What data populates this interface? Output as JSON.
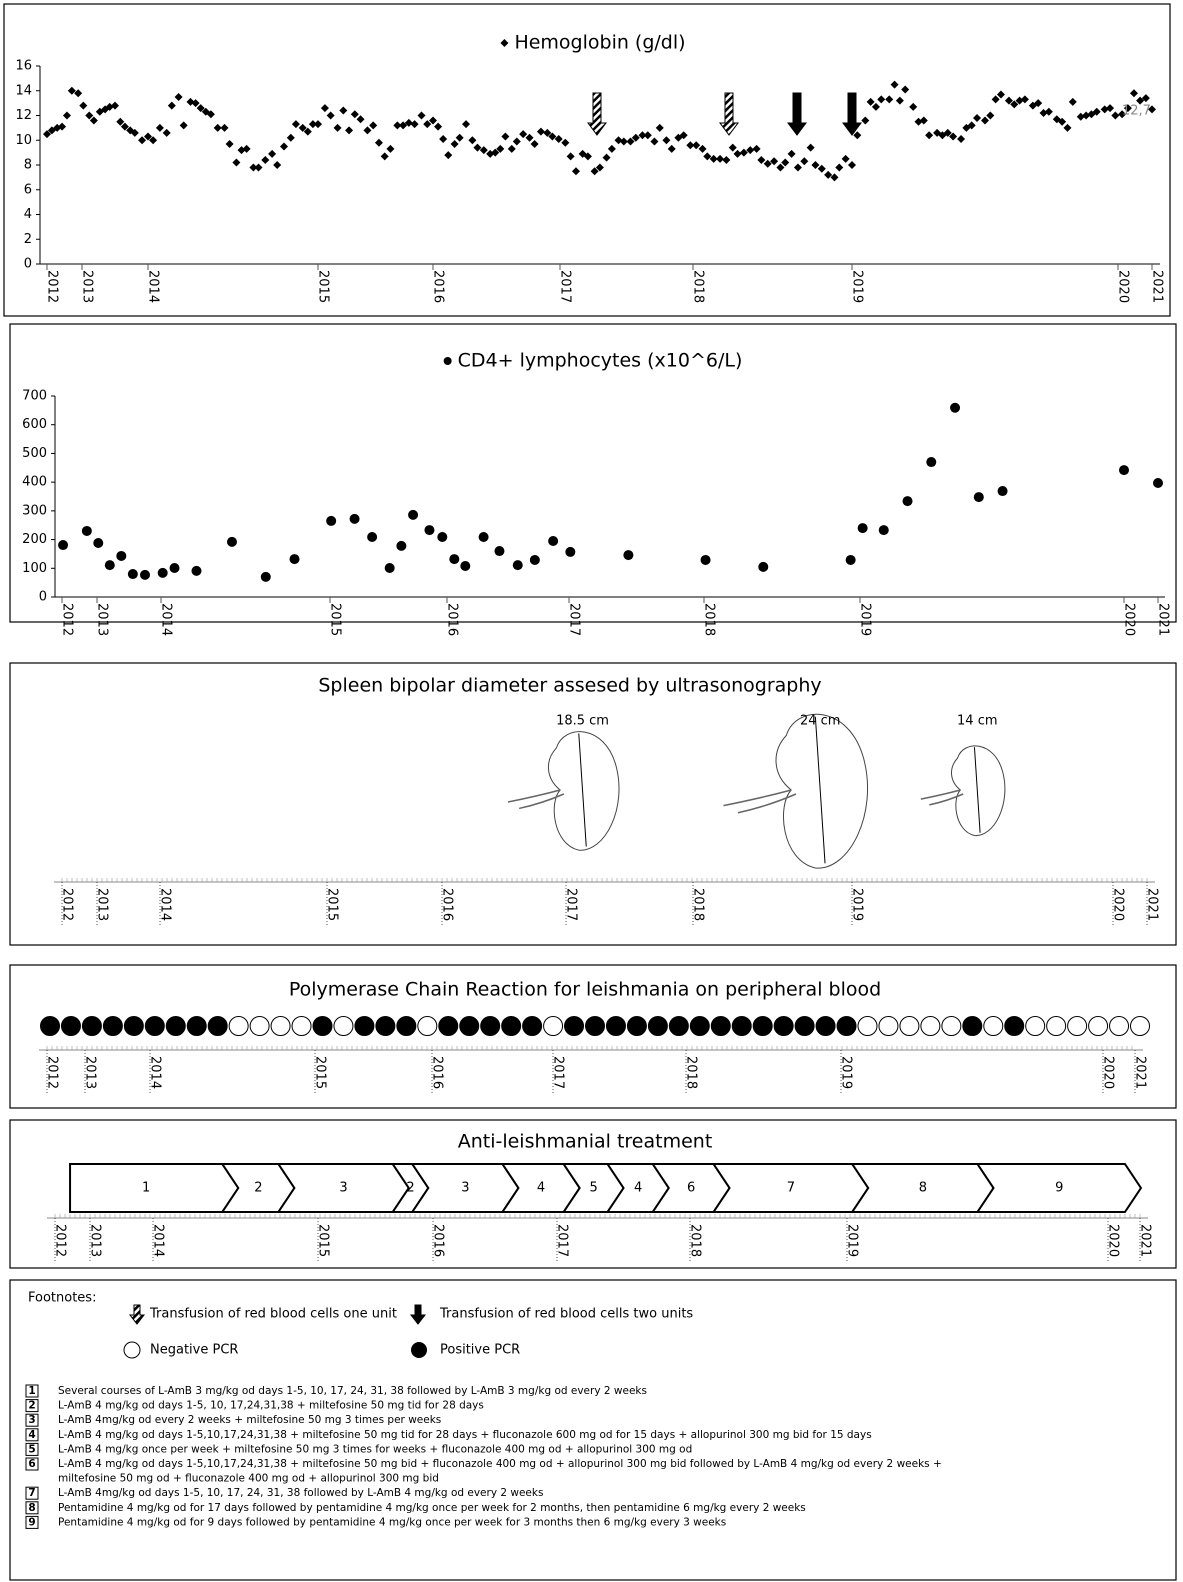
{
  "chart_data": [
    {
      "type": "scatter",
      "title": "Hemoglobin (g/dl)",
      "marker": "diamond",
      "color": "#000000",
      "annotation": "12,7",
      "x": [
        2012.0,
        2012.14,
        2012.29,
        2012.43,
        2012.57,
        2012.71,
        2012.89,
        2013.02,
        2013.11,
        2013.18,
        2013.27,
        2013.35,
        2013.42,
        2013.5,
        2013.58,
        2013.65,
        2013.73,
        2013.8,
        2013.91,
        2014.0,
        2014.03,
        2014.07,
        2014.11,
        2014.14,
        2014.18,
        2014.21,
        2014.25,
        2014.28,
        2014.31,
        2014.34,
        2014.37,
        2014.41,
        2014.45,
        2014.48,
        2014.52,
        2014.55,
        2014.58,
        2014.62,
        2014.65,
        2014.69,
        2014.73,
        2014.76,
        2014.8,
        2014.84,
        2014.87,
        2014.91,
        2014.94,
        2014.97,
        2015.0,
        2015.06,
        2015.11,
        2015.17,
        2015.22,
        2015.27,
        2015.32,
        2015.37,
        2015.43,
        2015.48,
        2015.53,
        2015.58,
        2015.63,
        2015.69,
        2015.74,
        2015.79,
        2015.84,
        2015.9,
        2015.95,
        2016.0,
        2016.04,
        2016.08,
        2016.12,
        2016.17,
        2016.21,
        2016.26,
        2016.31,
        2016.35,
        2016.4,
        2016.45,
        2016.49,
        2016.53,
        2016.57,
        2016.62,
        2016.66,
        2016.71,
        2016.76,
        2016.8,
        2016.85,
        2016.9,
        2016.94,
        2016.99,
        2017.04,
        2017.08,
        2017.12,
        2017.17,
        2017.21,
        2017.26,
        2017.3,
        2017.35,
        2017.39,
        2017.44,
        2017.48,
        2017.53,
        2017.57,
        2017.62,
        2017.66,
        2017.71,
        2017.75,
        2017.8,
        2017.84,
        2017.89,
        2017.93,
        2017.98,
        2018.02,
        2018.06,
        2018.09,
        2018.13,
        2018.17,
        2018.21,
        2018.25,
        2018.28,
        2018.32,
        2018.36,
        2018.4,
        2018.43,
        2018.47,
        2018.51,
        2018.55,
        2018.58,
        2018.62,
        2018.66,
        2018.7,
        2018.74,
        2018.77,
        2018.81,
        2018.85,
        2018.89,
        2018.92,
        2018.96,
        2019.0,
        2019.02,
        2019.05,
        2019.07,
        2019.09,
        2019.11,
        2019.14,
        2019.16,
        2019.18,
        2019.2,
        2019.23,
        2019.25,
        2019.27,
        2019.29,
        2019.32,
        2019.34,
        2019.36,
        2019.38,
        2019.41,
        2019.43,
        2019.45,
        2019.47,
        2019.5,
        2019.52,
        2019.54,
        2019.56,
        2019.59,
        2019.61,
        2019.63,
        2019.65,
        2019.68,
        2019.7,
        2019.72,
        2019.74,
        2019.77,
        2019.79,
        2019.81,
        2019.83,
        2019.86,
        2019.88,
        2019.9,
        2019.92,
        2019.95,
        2019.97,
        2019.99,
        2020.12,
        2020.29,
        2020.47,
        2020.65,
        2020.82,
        2021.0
      ],
      "values": [
        10.5,
        10.8,
        11.0,
        11.1,
        12.0,
        14.0,
        13.8,
        12.8,
        12.0,
        11.6,
        12.3,
        12.5,
        12.7,
        12.8,
        11.5,
        11.1,
        10.8,
        10.6,
        10.0,
        10.3,
        10.0,
        11.0,
        10.6,
        12.8,
        13.5,
        11.2,
        13.1,
        13.0,
        12.6,
        12.3,
        12.1,
        11.0,
        11.0,
        9.7,
        8.2,
        9.2,
        9.3,
        7.8,
        7.8,
        8.4,
        8.9,
        8.0,
        9.5,
        10.2,
        11.3,
        11.0,
        10.7,
        11.3,
        11.3,
        12.6,
        12.0,
        11.0,
        12.4,
        10.8,
        12.1,
        11.7,
        10.8,
        11.2,
        9.8,
        8.7,
        9.3,
        11.2,
        11.2,
        11.4,
        11.3,
        12.0,
        11.3,
        11.6,
        11.1,
        10.1,
        8.8,
        9.7,
        10.2,
        11.3,
        10.0,
        9.4,
        9.2,
        8.9,
        9.0,
        9.3,
        10.3,
        9.3,
        9.9,
        10.5,
        10.2,
        9.7,
        10.7,
        10.6,
        10.3,
        10.1,
        9.8,
        8.7,
        7.5,
        8.9,
        8.7,
        7.5,
        7.8,
        8.6,
        9.3,
        10.0,
        9.9,
        9.9,
        10.2,
        10.4,
        10.4,
        9.9,
        11.0,
        10.0,
        9.3,
        10.2,
        10.4,
        9.6,
        9.6,
        9.3,
        8.7,
        8.5,
        8.5,
        8.4,
        9.4,
        8.9,
        9.0,
        9.2,
        9.3,
        8.4,
        8.1,
        8.3,
        7.8,
        8.2,
        8.9,
        7.8,
        8.3,
        9.4,
        8.0,
        7.7,
        7.2,
        7.0,
        7.8,
        8.5,
        8.0,
        10.4,
        11.6,
        13.1,
        12.7,
        13.3,
        13.3,
        14.5,
        13.2,
        14.1,
        12.7,
        11.5,
        11.6,
        10.4,
        10.6,
        10.4,
        10.6,
        10.3,
        10.1,
        11.0,
        11.2,
        11.8,
        11.6,
        12.0,
        13.3,
        13.7,
        13.2,
        12.9,
        13.2,
        13.3,
        12.8,
        13.0,
        12.2,
        12.3,
        11.7,
        11.5,
        11.0,
        13.1,
        11.9,
        12.0,
        12.1,
        12.3,
        12.5,
        12.6,
        12.0,
        12.1,
        12.6,
        13.8,
        13.2,
        13.4,
        12.5
      ],
      "xlim": [
        2012,
        2021
      ],
      "xticks": [
        2012,
        2013,
        2014,
        2015,
        2016,
        2017,
        2018,
        2019,
        2020,
        2021
      ],
      "ylim": [
        0,
        16
      ],
      "yticks": [
        0,
        2,
        4,
        6,
        8,
        10,
        12,
        14,
        16
      ]
    },
    {
      "type": "scatter",
      "title": "CD4+ lymphocytes (x10^6/L)",
      "marker": "circle",
      "color": "#000000",
      "x": [
        2012.03,
        2012.71,
        2013.02,
        2013.2,
        2013.38,
        2013.56,
        2013.75,
        2014.01,
        2014.08,
        2014.21,
        2014.42,
        2014.62,
        2014.79,
        2015.01,
        2015.21,
        2015.36,
        2015.51,
        2015.61,
        2015.71,
        2015.85,
        2015.96,
        2016.06,
        2016.15,
        2016.3,
        2016.43,
        2016.58,
        2016.72,
        2016.87,
        2017.01,
        2017.44,
        2018.01,
        2018.38,
        2018.94,
        2019.01,
        2019.09,
        2019.18,
        2019.27,
        2019.36,
        2019.45,
        2019.54,
        2020.0,
        2021.0
      ],
      "values": [
        181,
        230,
        188,
        111,
        143,
        80,
        77,
        84,
        101,
        91,
        192,
        70,
        132,
        265,
        272,
        209,
        101,
        178,
        286,
        233,
        209,
        132,
        108,
        209,
        160,
        111,
        129,
        195,
        157,
        146,
        129,
        105,
        129,
        240,
        233,
        334,
        470,
        659,
        348,
        369,
        442,
        397
      ],
      "xlim": [
        2012,
        2021
      ],
      "xticks": [
        2012,
        2013,
        2014,
        2015,
        2016,
        2017,
        2018,
        2019,
        2020,
        2021
      ],
      "ylim": [
        0,
        700
      ],
      "yticks": [
        0,
        100,
        200,
        300,
        400,
        500,
        600,
        700
      ]
    },
    {
      "type": "pictogram",
      "title": "Spleen bipolar diameter assesed by ultrasonography",
      "x": [
        2017.13,
        2018.8,
        2019.48
      ],
      "values": [
        18.5,
        24,
        14
      ],
      "value_labels": [
        "18.5 cm",
        "24 cm",
        "14 cm"
      ],
      "xlim": [
        2012,
        2021
      ],
      "xticks": [
        2012,
        2013,
        2014,
        2015,
        2016,
        2017,
        2018,
        2019,
        2020,
        2021
      ]
    },
    {
      "type": "dot-strip",
      "title": "Polymerase Chain Reaction for leishmania on peripheral blood",
      "values": [
        1,
        1,
        1,
        1,
        1,
        1,
        1,
        1,
        1,
        0,
        0,
        0,
        0,
        1,
        0,
        1,
        1,
        1,
        0,
        1,
        1,
        1,
        1,
        1,
        0,
        1,
        1,
        1,
        1,
        1,
        1,
        1,
        1,
        1,
        1,
        1,
        1,
        1,
        1,
        0,
        0,
        0,
        0,
        0,
        1,
        0,
        1,
        0,
        0,
        0,
        0,
        0,
        0
      ],
      "xlim": [
        2012,
        2021
      ],
      "xticks": [
        2012,
        2013,
        2014,
        2015,
        2016,
        2017,
        2018,
        2019,
        2020,
        2021
      ]
    },
    {
      "type": "timeline",
      "title": "Anti-leishmanial treatment",
      "categories": [
        1,
        2,
        3,
        2,
        3,
        4,
        5,
        4,
        6,
        7,
        8,
        9
      ],
      "start": [
        2012.43,
        2014.42,
        2014.76,
        2015.65,
        2015.82,
        2016.56,
        2017.05,
        2017.38,
        2017.72,
        2018.15,
        2019.02,
        2019.5
      ],
      "end": [
        2014.42,
        2014.76,
        2015.65,
        2015.82,
        2016.56,
        2017.05,
        2017.38,
        2017.72,
        2018.15,
        2019.02,
        2019.5,
        2020.53
      ],
      "xlim": [
        2012,
        2021
      ],
      "xticks": [
        2012,
        2013,
        2014,
        2015,
        2016,
        2017,
        2018,
        2019,
        2020,
        2021
      ]
    }
  ],
  "footnotes": {
    "heading": "Footnotes:",
    "legend": [
      "Transfusion of red blood cells one unit",
      "Transfusion of red blood cells two units",
      "Negative PCR",
      "Positive PCR"
    ],
    "items": [
      {
        "number": 1,
        "lines": [
          "Several courses of L-AmB 3 mg/kg od days 1-5, 10, 17, 24, 31, 38 followed by L-AmB 3 mg/kg od every 2 weeks"
        ]
      },
      {
        "number": 2,
        "lines": [
          "L-AmB  4 mg/kg od days 1-5, 10, 17,24,31,38 + miltefosine 50 mg tid for 28 days"
        ]
      },
      {
        "number": 3,
        "lines": [
          "L-AmB 4mg/kg od every 2 weeks + miltefosine 50 mg 3 times per weeks"
        ]
      },
      {
        "number": 4,
        "lines": [
          "L-AmB 4 mg/kg od days 1-5,10,17,24,31,38 + miltefosine 50 mg tid for 28 days + fluconazole 600 mg od for 15 days + allopurinol 300 mg bid for 15 days"
        ]
      },
      {
        "number": 5,
        "lines": [
          "L-AmB 4 mg/kg once per week + miltefosine 50 mg 3 times for weeks + fluconazole 400 mg od  + allopurinol 300 mg od"
        ]
      },
      {
        "number": 6,
        "lines": [
          "L-AmB 4 mg/kg od days 1-5,10,17,24,31,38 + miltefosine 50 mg bid + fluconazole 400 mg od + allopurinol 300 mg bid followed by L-AmB 4 mg/kg od every 2 weeks +",
          "miltefosine 50 mg od + fluconazole 400 mg od + allopurinol 300 mg bid"
        ]
      },
      {
        "number": 7,
        "lines": [
          "L-AmB 4mg/kg od days 1-5, 10, 17, 24, 31, 38 followed by L-AmB 4 mg/kg od every 2 weeks"
        ]
      },
      {
        "number": 8,
        "lines": [
          "Pentamidine 4 mg/kg od for 17 days followed by pentamidine  4 mg/kg once per week for 2 months, then pentamidine  6 mg/kg every 2 weeks"
        ]
      },
      {
        "number": 9,
        "lines": [
          "Pentamidine 4 mg/kg od for 9 days followed by pentamidine 4 mg/kg once per week for 3 months then 6 mg/kg every 3 weeks"
        ]
      }
    ]
  }
}
